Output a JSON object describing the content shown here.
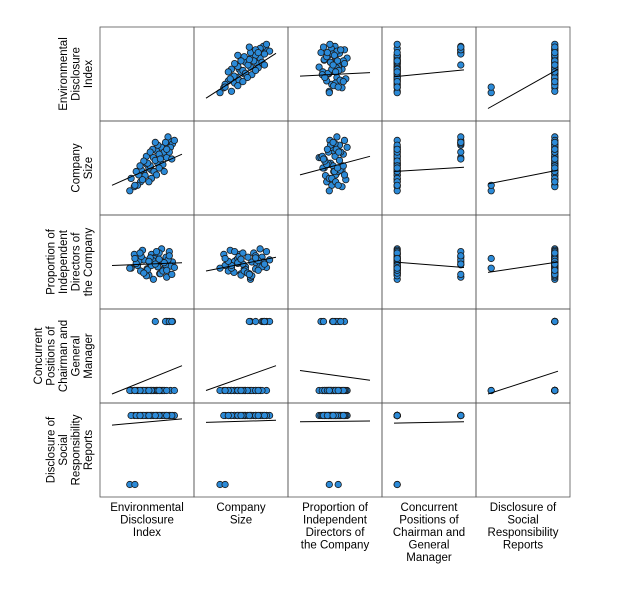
{
  "chart_data": {
    "type": "scatter",
    "layout": "scatterplot-matrix",
    "title": "",
    "grid": false,
    "point_color": "#2b8ad8",
    "point_stroke": "#1a1a1a",
    "line_color": "#000000",
    "variables": [
      {
        "key": "edi",
        "label_lines": [
          "Environmental",
          "Disclosure",
          "Index"
        ]
      },
      {
        "key": "size",
        "label_lines": [
          "Company",
          "Size"
        ]
      },
      {
        "key": "ind",
        "label_lines": [
          "Proportion of",
          "Independent",
          "Directors of",
          "the Company"
        ]
      },
      {
        "key": "dual",
        "label_lines": [
          "Concurrent",
          "Positions of",
          "Chairman and",
          "General",
          "Manager"
        ]
      },
      {
        "key": "csr",
        "label_lines": [
          "Disclosure of",
          "Social",
          "Responsibility",
          "Reports"
        ]
      }
    ],
    "scale_ranges": [
      [
        0,
        1.1
      ],
      [
        0,
        1.1
      ],
      [
        0,
        1.1
      ],
      [
        -0.05,
        1.05
      ],
      [
        -0.05,
        1.05
      ]
    ],
    "fit_lines": [
      {
        "x": "size",
        "y": "edi",
        "x0": 0.0,
        "y0": 0.2,
        "x1": 1.1,
        "y1": 0.85
      },
      {
        "x": "ind",
        "y": "edi",
        "x0": 0.0,
        "y0": 0.52,
        "x1": 1.1,
        "y1": 0.57
      },
      {
        "x": "dual",
        "y": "edi",
        "x0": -0.05,
        "y0": 0.51,
        "x1": 1.05,
        "y1": 0.61
      },
      {
        "x": "csr",
        "y": "edi",
        "x0": -0.05,
        "y0": 0.05,
        "x1": 1.05,
        "y1": 0.62
      },
      {
        "x": "edi",
        "y": "size",
        "x0": 0.0,
        "y0": 0.3,
        "x1": 1.1,
        "y1": 0.75
      },
      {
        "x": "ind",
        "y": "size",
        "x0": 0.0,
        "y0": 0.45,
        "x1": 1.1,
        "y1": 0.72
      },
      {
        "x": "dual",
        "y": "size",
        "x0": -0.05,
        "y0": 0.5,
        "x1": 1.05,
        "y1": 0.56
      },
      {
        "x": "csr",
        "y": "size",
        "x0": -0.05,
        "y0": 0.32,
        "x1": 1.05,
        "y1": 0.52
      },
      {
        "x": "edi",
        "y": "ind",
        "x0": 0.0,
        "y0": 0.5,
        "x1": 1.1,
        "y1": 0.54
      },
      {
        "x": "size",
        "y": "ind",
        "x0": 0.0,
        "y0": 0.42,
        "x1": 1.1,
        "y1": 0.62
      },
      {
        "x": "dual",
        "y": "ind",
        "x0": -0.05,
        "y0": 0.55,
        "x1": 1.05,
        "y1": 0.47
      },
      {
        "x": "csr",
        "y": "ind",
        "x0": -0.05,
        "y0": 0.4,
        "x1": 1.05,
        "y1": 0.55
      },
      {
        "x": "edi",
        "y": "dual",
        "x0": 0.0,
        "y0": -0.05,
        "x1": 1.1,
        "y1": 0.36
      },
      {
        "x": "size",
        "y": "dual",
        "x0": 0.0,
        "y0": 0.0,
        "x1": 1.1,
        "y1": 0.36
      },
      {
        "x": "ind",
        "y": "dual",
        "x0": 0.0,
        "y0": 0.29,
        "x1": 1.1,
        "y1": 0.15
      },
      {
        "x": "csr",
        "y": "dual",
        "x0": -0.05,
        "y0": -0.05,
        "x1": 1.05,
        "y1": 0.28
      },
      {
        "x": "edi",
        "y": "csr",
        "x0": 0.0,
        "y0": 0.86,
        "x1": 1.1,
        "y1": 0.95
      },
      {
        "x": "size",
        "y": "csr",
        "x0": 0.0,
        "y0": 0.9,
        "x1": 1.1,
        "y1": 0.93
      },
      {
        "x": "ind",
        "y": "csr",
        "x0": 0.0,
        "y0": 0.91,
        "x1": 1.1,
        "y1": 0.92
      },
      {
        "x": "dual",
        "y": "csr",
        "x0": -0.05,
        "y0": 0.89,
        "x1": 1.05,
        "y1": 0.91
      }
    ],
    "observations": [
      [
        0.75,
        0.55,
        0.38,
        0,
        1
      ],
      [
        0.8,
        0.72,
        0.55,
        0,
        1
      ],
      [
        0.85,
        0.88,
        0.62,
        1,
        1
      ],
      [
        0.55,
        0.6,
        0.45,
        0,
        1
      ],
      [
        0.62,
        0.52,
        0.66,
        0,
        1
      ],
      [
        0.7,
        0.8,
        0.52,
        0,
        1
      ],
      [
        0.9,
        0.95,
        0.7,
        1,
        1
      ],
      [
        0.45,
        0.35,
        0.42,
        0,
        1
      ],
      [
        0.5,
        0.48,
        0.58,
        0,
        1
      ],
      [
        0.65,
        0.7,
        0.3,
        0,
        1
      ],
      [
        0.72,
        0.62,
        0.48,
        0,
        1
      ],
      [
        0.78,
        0.85,
        0.74,
        0,
        1
      ],
      [
        0.95,
        0.9,
        0.55,
        1,
        1
      ],
      [
        0.4,
        0.3,
        0.5,
        0,
        1
      ],
      [
        0.58,
        0.55,
        0.36,
        0,
        1
      ],
      [
        0.68,
        0.66,
        0.62,
        0,
        1
      ],
      [
        0.82,
        0.78,
        0.45,
        0,
        1
      ],
      [
        0.88,
        1.0,
        0.58,
        1,
        1
      ],
      [
        0.35,
        0.28,
        0.66,
        0,
        1
      ],
      [
        0.52,
        0.44,
        0.4,
        0,
        1
      ],
      [
        0.6,
        0.58,
        0.52,
        0,
        1
      ],
      [
        0.74,
        0.75,
        0.68,
        0,
        1
      ],
      [
        0.86,
        0.7,
        0.33,
        1,
        1
      ],
      [
        0.92,
        0.85,
        0.49,
        0,
        1
      ],
      [
        0.42,
        0.45,
        0.56,
        0,
        1
      ],
      [
        0.48,
        0.38,
        0.72,
        0,
        1
      ],
      [
        0.56,
        0.62,
        0.44,
        0,
        1
      ],
      [
        0.66,
        0.5,
        0.6,
        0,
        1
      ],
      [
        0.76,
        0.68,
        0.38,
        0,
        1
      ],
      [
        0.84,
        0.92,
        0.51,
        1,
        1
      ],
      [
        0.3,
        0.4,
        0.46,
        0,
        1
      ],
      [
        0.46,
        0.52,
        0.63,
        0,
        1
      ],
      [
        0.54,
        0.72,
        0.35,
        0,
        1
      ],
      [
        0.64,
        0.82,
        0.57,
        0,
        1
      ],
      [
        0.7,
        0.45,
        0.7,
        0,
        1
      ],
      [
        0.8,
        0.6,
        0.42,
        0,
        1
      ],
      [
        0.9,
        0.78,
        0.64,
        1,
        1
      ],
      [
        0.98,
        0.95,
        0.47,
        0,
        1
      ],
      [
        0.38,
        0.5,
        0.53,
        0,
        1
      ],
      [
        0.5,
        0.65,
        0.39,
        0,
        1
      ],
      [
        0.6,
        0.78,
        0.61,
        0,
        1
      ],
      [
        0.72,
        0.88,
        0.48,
        0,
        1
      ],
      [
        0.82,
        0.5,
        0.54,
        0,
        1
      ],
      [
        0.94,
        0.68,
        0.37,
        1,
        1
      ],
      [
        0.44,
        0.58,
        0.68,
        0,
        1
      ],
      [
        0.62,
        0.4,
        0.5,
        0,
        1
      ],
      [
        0.74,
        0.55,
        0.59,
        0,
        1
      ],
      [
        0.86,
        0.82,
        0.43,
        0,
        1
      ],
      [
        0.58,
        0.35,
        0.56,
        0,
        1
      ],
      [
        0.68,
        0.92,
        0.52,
        1,
        1
      ],
      [
        0.28,
        0.22,
        0.46,
        0,
        0
      ],
      [
        0.36,
        0.3,
        0.6,
        0,
        0
      ]
    ]
  }
}
